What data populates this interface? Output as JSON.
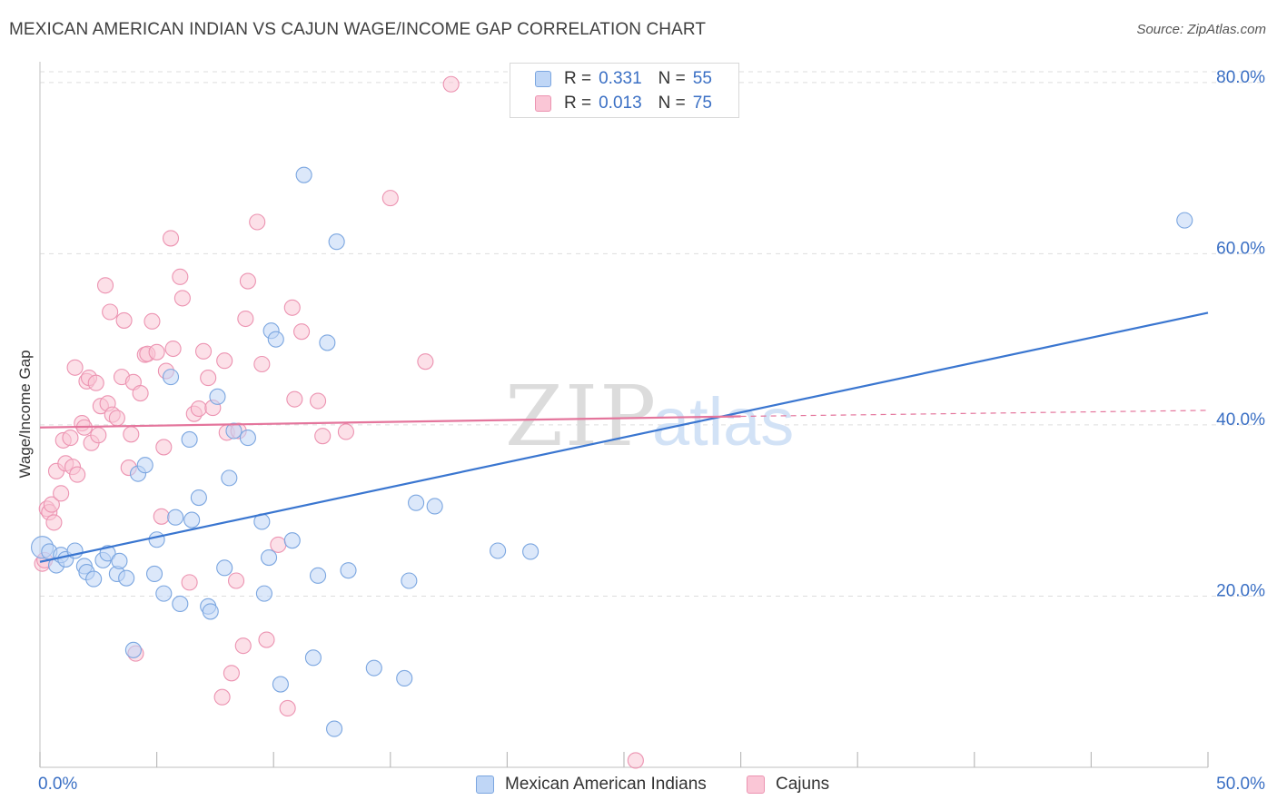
{
  "title": "MEXICAN AMERICAN INDIAN VS CAJUN WAGE/INCOME GAP CORRELATION CHART",
  "source": "Source: ZipAtlas.com",
  "watermark": {
    "zip": "ZIP",
    "atlas": "atlas"
  },
  "legend": {
    "series1": {
      "r_label": "R =",
      "r_value": "0.331",
      "n_label": "N =",
      "n_value": "55"
    },
    "series2": {
      "r_label": "R =",
      "r_value": "0.013",
      "n_label": "N =",
      "n_value": "75"
    }
  },
  "colors": {
    "blue_fill": "#bfd6f6",
    "blue_stroke": "#7ba6e0",
    "blue_line": "#3a76d0",
    "pink_fill": "#fac6d6",
    "pink_stroke": "#ec93b1",
    "pink_line": "#e4759c",
    "tick_label": "#3a6fc4",
    "grid": "#dddddd"
  },
  "chart_data": {
    "type": "scatter",
    "title": "MEXICAN AMERICAN INDIAN VS CAJUN WAGE/INCOME GAP CORRELATION CHART",
    "xlabel": "",
    "ylabel": "Wage/Income Gap",
    "xlim": [
      0,
      50
    ],
    "ylim": [
      0,
      82
    ],
    "x_tick_labels": [
      "0.0%",
      "50.0%"
    ],
    "y_ticks": [
      20,
      40,
      60,
      80
    ],
    "y_tick_labels": [
      "20.0%",
      "40.0%",
      "60.0%",
      "80.0%"
    ],
    "grid": "horizontal dashed",
    "legend_placement": "bottom",
    "series": [
      {
        "name": "Mexican American Indians",
        "color": "#7ba6e0",
        "trend": {
          "x": [
            0,
            50
          ],
          "y": [
            24.0,
            53.1
          ]
        },
        "points": [
          [
            0.1,
            25.7
          ],
          [
            0.4,
            25.2
          ],
          [
            0.7,
            23.6
          ],
          [
            0.9,
            24.8
          ],
          [
            1.1,
            24.3
          ],
          [
            1.5,
            25.3
          ],
          [
            1.9,
            23.5
          ],
          [
            2.0,
            22.8
          ],
          [
            2.3,
            22.0
          ],
          [
            2.7,
            24.2
          ],
          [
            2.9,
            25.0
          ],
          [
            3.3,
            22.6
          ],
          [
            3.4,
            24.1
          ],
          [
            3.7,
            22.1
          ],
          [
            4.0,
            13.7
          ],
          [
            4.2,
            34.3
          ],
          [
            4.5,
            35.3
          ],
          [
            4.9,
            22.6
          ],
          [
            5.0,
            26.6
          ],
          [
            5.3,
            20.3
          ],
          [
            5.6,
            45.6
          ],
          [
            5.8,
            29.2
          ],
          [
            6.0,
            19.1
          ],
          [
            6.4,
            38.3
          ],
          [
            6.5,
            28.9
          ],
          [
            6.8,
            31.5
          ],
          [
            7.2,
            18.8
          ],
          [
            7.3,
            18.2
          ],
          [
            7.6,
            43.3
          ],
          [
            7.9,
            23.3
          ],
          [
            8.1,
            33.8
          ],
          [
            8.3,
            39.3
          ],
          [
            8.9,
            38.5
          ],
          [
            9.5,
            28.7
          ],
          [
            9.6,
            20.3
          ],
          [
            9.8,
            24.5
          ],
          [
            9.9,
            51.0
          ],
          [
            10.1,
            50.0
          ],
          [
            10.3,
            9.7
          ],
          [
            10.8,
            26.5
          ],
          [
            11.3,
            69.2
          ],
          [
            11.7,
            12.8
          ],
          [
            11.9,
            22.4
          ],
          [
            12.3,
            49.6
          ],
          [
            12.6,
            4.5
          ],
          [
            12.7,
            61.4
          ],
          [
            13.2,
            23.0
          ],
          [
            14.3,
            11.6
          ],
          [
            15.6,
            10.4
          ],
          [
            15.8,
            21.8
          ],
          [
            16.1,
            30.9
          ],
          [
            16.9,
            30.5
          ],
          [
            19.6,
            25.3
          ],
          [
            21.0,
            25.2
          ],
          [
            49.0,
            63.9
          ]
        ]
      },
      {
        "name": "Cajuns",
        "color": "#ec93b1",
        "trend": {
          "x": [
            0,
            30
          ],
          "y": [
            39.7,
            41.0
          ]
        },
        "trend_ext": {
          "x": [
            30,
            50
          ],
          "y": [
            41.0,
            41.7
          ]
        },
        "points": [
          [
            0.1,
            23.8
          ],
          [
            0.2,
            24.2
          ],
          [
            0.3,
            30.2
          ],
          [
            0.4,
            29.8
          ],
          [
            0.5,
            30.7
          ],
          [
            0.6,
            28.6
          ],
          [
            0.7,
            34.6
          ],
          [
            0.9,
            32.0
          ],
          [
            1.0,
            38.2
          ],
          [
            1.1,
            35.5
          ],
          [
            1.3,
            38.5
          ],
          [
            1.4,
            35.1
          ],
          [
            1.5,
            46.7
          ],
          [
            1.6,
            34.2
          ],
          [
            1.8,
            40.2
          ],
          [
            1.9,
            39.7
          ],
          [
            2.0,
            45.1
          ],
          [
            2.1,
            45.5
          ],
          [
            2.2,
            37.9
          ],
          [
            2.4,
            44.9
          ],
          [
            2.5,
            38.8
          ],
          [
            2.6,
            42.2
          ],
          [
            2.8,
            56.3
          ],
          [
            2.9,
            42.5
          ],
          [
            3.0,
            53.2
          ],
          [
            3.1,
            41.2
          ],
          [
            3.3,
            40.8
          ],
          [
            3.5,
            45.6
          ],
          [
            3.6,
            52.2
          ],
          [
            3.8,
            35.0
          ],
          [
            3.9,
            38.9
          ],
          [
            4.0,
            45.0
          ],
          [
            4.1,
            13.3
          ],
          [
            4.3,
            43.7
          ],
          [
            4.5,
            48.2
          ],
          [
            4.6,
            48.3
          ],
          [
            4.8,
            52.1
          ],
          [
            5.0,
            48.5
          ],
          [
            5.2,
            29.3
          ],
          [
            5.3,
            37.4
          ],
          [
            5.4,
            46.3
          ],
          [
            5.6,
            61.8
          ],
          [
            5.7,
            48.9
          ],
          [
            6.0,
            57.3
          ],
          [
            6.1,
            54.8
          ],
          [
            6.4,
            21.6
          ],
          [
            6.6,
            41.3
          ],
          [
            6.8,
            41.9
          ],
          [
            7.0,
            48.6
          ],
          [
            7.2,
            45.5
          ],
          [
            7.4,
            42.0
          ],
          [
            7.8,
            8.2
          ],
          [
            7.9,
            47.5
          ],
          [
            8.0,
            39.1
          ],
          [
            8.2,
            11.0
          ],
          [
            8.4,
            21.8
          ],
          [
            8.5,
            39.3
          ],
          [
            8.7,
            14.2
          ],
          [
            8.8,
            52.4
          ],
          [
            8.9,
            56.8
          ],
          [
            9.3,
            63.7
          ],
          [
            9.5,
            47.1
          ],
          [
            9.7,
            14.9
          ],
          [
            10.2,
            26.0
          ],
          [
            10.6,
            6.9
          ],
          [
            10.8,
            53.7
          ],
          [
            10.9,
            43.0
          ],
          [
            11.2,
            50.9
          ],
          [
            11.9,
            42.8
          ],
          [
            12.1,
            38.7
          ],
          [
            13.1,
            39.2
          ],
          [
            15.0,
            66.5
          ],
          [
            16.5,
            47.4
          ],
          [
            17.6,
            79.8
          ],
          [
            25.5,
            0.8
          ]
        ]
      }
    ]
  }
}
